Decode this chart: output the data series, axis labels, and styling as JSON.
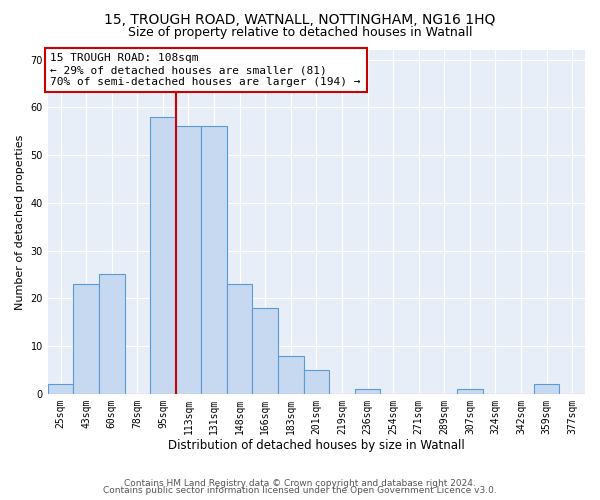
{
  "title_line1": "15, TROUGH ROAD, WATNALL, NOTTINGHAM, NG16 1HQ",
  "title_line2": "Size of property relative to detached houses in Watnall",
  "xlabel": "Distribution of detached houses by size in Watnall",
  "ylabel": "Number of detached properties",
  "categories": [
    "25sqm",
    "43sqm",
    "60sqm",
    "78sqm",
    "95sqm",
    "113sqm",
    "131sqm",
    "148sqm",
    "166sqm",
    "183sqm",
    "201sqm",
    "219sqm",
    "236sqm",
    "254sqm",
    "271sqm",
    "289sqm",
    "307sqm",
    "324sqm",
    "342sqm",
    "359sqm",
    "377sqm"
  ],
  "values": [
    2,
    23,
    25,
    0,
    58,
    56,
    56,
    23,
    18,
    8,
    5,
    0,
    1,
    0,
    0,
    0,
    1,
    0,
    0,
    2,
    0
  ],
  "bar_color": "#c6d9f0",
  "bar_edge_color": "#5b9bd5",
  "vline_x": 4.5,
  "vline_color": "#cc0000",
  "annotation_text": "15 TROUGH ROAD: 108sqm\n← 29% of detached houses are smaller (81)\n70% of semi-detached houses are larger (194) →",
  "annotation_box_color": "#ffffff",
  "annotation_box_edge_color": "#cc0000",
  "ylim": [
    0,
    72
  ],
  "yticks": [
    0,
    10,
    20,
    30,
    40,
    50,
    60,
    70
  ],
  "bg_color": "#e8eef7",
  "footer_line1": "Contains HM Land Registry data © Crown copyright and database right 2024.",
  "footer_line2": "Contains public sector information licensed under the Open Government Licence v3.0.",
  "title_fontsize": 10,
  "subtitle_fontsize": 9,
  "xlabel_fontsize": 8.5,
  "ylabel_fontsize": 8,
  "tick_fontsize": 7,
  "annotation_fontsize": 8,
  "footer_fontsize": 6.5
}
